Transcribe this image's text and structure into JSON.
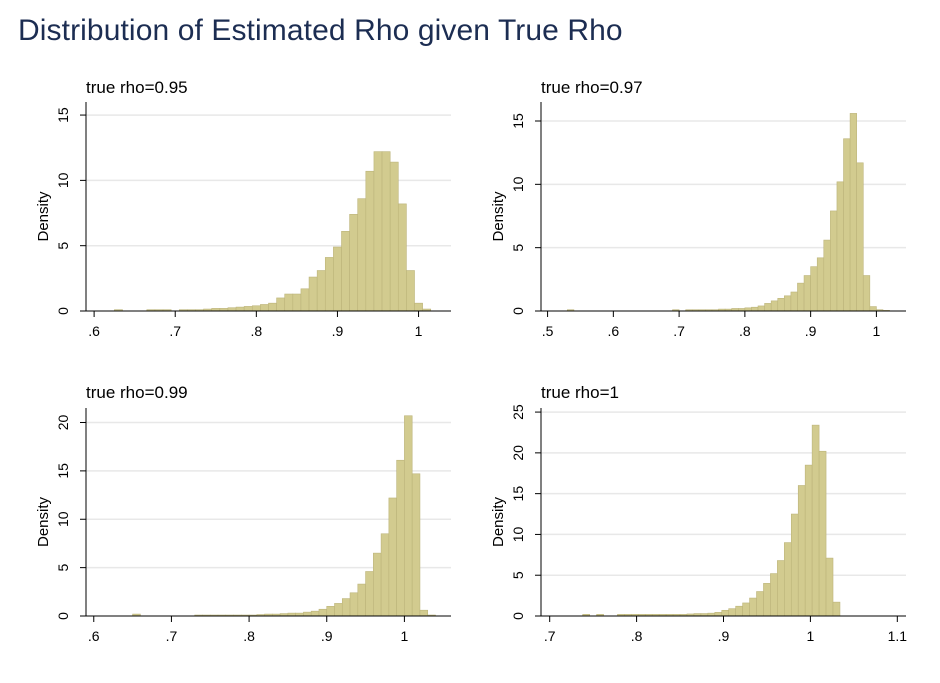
{
  "figure": {
    "title": "Distribution of Estimated Rho given True Rho",
    "colors": {
      "title": "#1c2d52",
      "bar_fill": "#d2cb8f",
      "bar_edge": "#bcb47a",
      "grid": "#e8e8e8"
    }
  },
  "chart_data": [
    {
      "type": "bar",
      "title": "true rho=0.95",
      "xlabel": "",
      "ylabel": "Density",
      "xlim": [
        0.59,
        1.04
      ],
      "ylim": [
        0,
        16
      ],
      "xticks": [
        0.6,
        0.7,
        0.8,
        0.9,
        1.0
      ],
      "xtick_labels": [
        ".6",
        ".7",
        ".8",
        ".9",
        "1"
      ],
      "yticks": [
        0,
        5,
        10,
        15
      ],
      "ytick_labels": [
        "0",
        "5",
        "10",
        "15"
      ],
      "grid": true,
      "bin_width": 0.01,
      "x": [
        0.63,
        0.67,
        0.68,
        0.69,
        0.71,
        0.72,
        0.73,
        0.74,
        0.75,
        0.76,
        0.77,
        0.78,
        0.79,
        0.8,
        0.81,
        0.82,
        0.83,
        0.84,
        0.85,
        0.86,
        0.87,
        0.88,
        0.89,
        0.9,
        0.91,
        0.92,
        0.93,
        0.94,
        0.95,
        0.96,
        0.97,
        0.98,
        0.99,
        1.0,
        1.01
      ],
      "values": [
        0.1,
        0.1,
        0.1,
        0.1,
        0.1,
        0.1,
        0.1,
        0.15,
        0.2,
        0.2,
        0.25,
        0.3,
        0.35,
        0.4,
        0.5,
        0.6,
        1.0,
        1.3,
        1.3,
        1.7,
        2.6,
        3.1,
        4.1,
        4.9,
        6.1,
        7.4,
        8.6,
        10.7,
        12.2,
        12.2,
        11.4,
        8.2,
        3.1,
        0.6,
        0.15
      ]
    },
    {
      "type": "bar",
      "title": "true rho=0.97",
      "xlabel": "",
      "ylabel": "Density",
      "xlim": [
        0.49,
        1.045
      ],
      "ylim": [
        0,
        16.5
      ],
      "xticks": [
        0.5,
        0.6,
        0.7,
        0.8,
        0.9,
        1.0
      ],
      "xtick_labels": [
        ".5",
        ".6",
        ".7",
        ".8",
        ".9",
        "1"
      ],
      "yticks": [
        0,
        5,
        10,
        15
      ],
      "ytick_labels": [
        "0",
        "5",
        "10",
        "15"
      ],
      "grid": true,
      "bin_width": 0.01,
      "x": [
        0.535,
        0.695,
        0.715,
        0.725,
        0.735,
        0.745,
        0.755,
        0.765,
        0.775,
        0.785,
        0.795,
        0.805,
        0.815,
        0.825,
        0.835,
        0.845,
        0.855,
        0.865,
        0.875,
        0.885,
        0.895,
        0.905,
        0.915,
        0.925,
        0.935,
        0.945,
        0.955,
        0.965,
        0.975,
        0.985,
        0.995,
        1.005,
        1.015
      ],
      "values": [
        0.1,
        0.1,
        0.1,
        0.1,
        0.1,
        0.1,
        0.1,
        0.15,
        0.15,
        0.2,
        0.2,
        0.25,
        0.3,
        0.4,
        0.6,
        0.8,
        1.0,
        1.2,
        1.5,
        2.2,
        2.8,
        3.5,
        4.2,
        5.6,
        7.9,
        10.2,
        13.6,
        15.6,
        11.7,
        2.8,
        0.35,
        0.1,
        0.05
      ]
    },
    {
      "type": "bar",
      "title": "true rho=0.99",
      "xlabel": "",
      "ylabel": "Density",
      "xlim": [
        0.59,
        1.06
      ],
      "ylim": [
        0,
        21.5
      ],
      "xticks": [
        0.6,
        0.7,
        0.8,
        0.9,
        1.0
      ],
      "xtick_labels": [
        ".6",
        ".7",
        ".8",
        ".9",
        "1"
      ],
      "yticks": [
        0,
        5,
        10,
        15,
        20
      ],
      "ytick_labels": [
        "0",
        "5",
        "10",
        "15",
        "20"
      ],
      "grid": true,
      "bin_width": 0.01,
      "x": [
        0.655,
        0.735,
        0.745,
        0.755,
        0.765,
        0.775,
        0.785,
        0.795,
        0.805,
        0.815,
        0.825,
        0.835,
        0.845,
        0.855,
        0.865,
        0.875,
        0.885,
        0.895,
        0.905,
        0.915,
        0.925,
        0.935,
        0.945,
        0.955,
        0.965,
        0.975,
        0.985,
        0.995,
        1.005,
        1.015,
        1.025,
        1.035
      ],
      "values": [
        0.2,
        0.1,
        0.1,
        0.1,
        0.1,
        0.1,
        0.1,
        0.1,
        0.1,
        0.15,
        0.2,
        0.2,
        0.25,
        0.3,
        0.3,
        0.4,
        0.5,
        0.7,
        1.0,
        1.3,
        1.8,
        2.4,
        3.3,
        4.6,
        6.5,
        8.5,
        12.2,
        16.1,
        20.7,
        14.7,
        0.6,
        0.1
      ]
    },
    {
      "type": "bar",
      "title": "true rho=1",
      "xlabel": "",
      "ylabel": "Density",
      "xlim": [
        0.69,
        1.11
      ],
      "ylim": [
        0,
        25.5
      ],
      "xticks": [
        0.7,
        0.8,
        0.9,
        1.0,
        1.1
      ],
      "xtick_labels": [
        ".7",
        ".8",
        ".9",
        "1",
        "1.1"
      ],
      "yticks": [
        0,
        5,
        10,
        15,
        20,
        25
      ],
      "ytick_labels": [
        "0",
        "5",
        "10",
        "15",
        "20",
        "25"
      ],
      "grid": true,
      "bin_width": 0.008,
      "x": [
        0.742,
        0.758,
        0.782,
        0.79,
        0.798,
        0.806,
        0.814,
        0.822,
        0.83,
        0.838,
        0.846,
        0.854,
        0.862,
        0.87,
        0.878,
        0.886,
        0.894,
        0.902,
        0.91,
        0.918,
        0.926,
        0.934,
        0.942,
        0.95,
        0.958,
        0.966,
        0.974,
        0.982,
        0.99,
        0.998,
        1.006,
        1.014,
        1.022,
        1.03
      ],
      "values": [
        0.2,
        0.2,
        0.2,
        0.2,
        0.2,
        0.2,
        0.2,
        0.2,
        0.2,
        0.2,
        0.2,
        0.2,
        0.25,
        0.3,
        0.3,
        0.35,
        0.45,
        0.7,
        0.9,
        1.2,
        1.6,
        2.2,
        3.0,
        4.0,
        5.2,
        6.8,
        9.0,
        12.5,
        16.0,
        18.5,
        23.4,
        20.2,
        7.1,
        1.7
      ]
    }
  ]
}
